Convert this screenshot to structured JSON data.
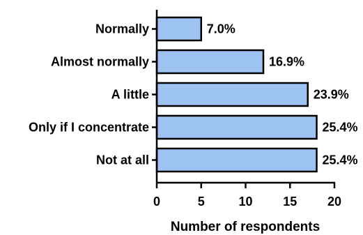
{
  "chart_data": {
    "type": "bar",
    "orientation": "horizontal",
    "categories": [
      "Normally",
      "Almost normally",
      "A little",
      "Only if I concentrate",
      "Not at all"
    ],
    "values": [
      5,
      12,
      17,
      18,
      18
    ],
    "data_labels": [
      "7.0%",
      "16.9%",
      "23.9%",
      "25.4%",
      "25.4%"
    ],
    "xlabel": "Number of respondents",
    "ylabel": "",
    "xlim": [
      0,
      20
    ],
    "xticks": [
      "0",
      "5",
      "10",
      "15",
      "20"
    ],
    "grid": false,
    "bar_color": "#9dc3f2",
    "edge_color": "#000000"
  }
}
